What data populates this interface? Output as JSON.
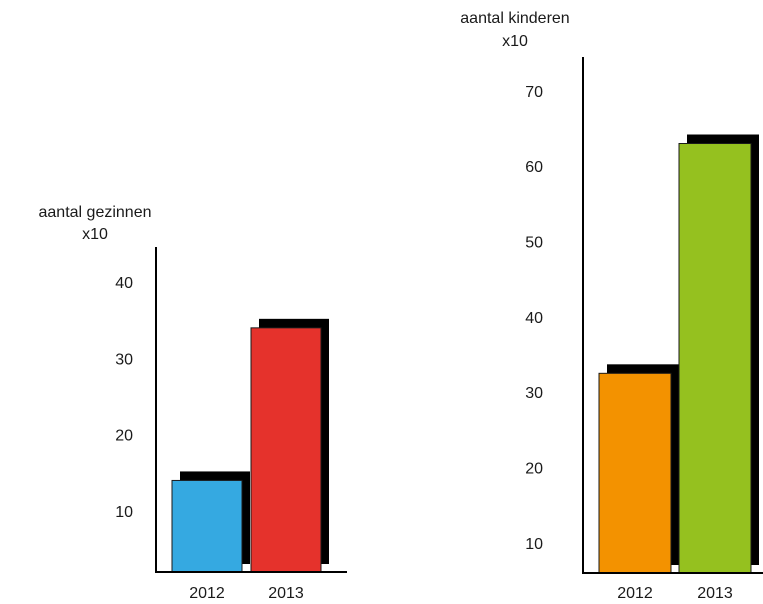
{
  "chart_data": [
    {
      "type": "bar",
      "title": "",
      "ylabel": "aantal gezinnen",
      "ylabel_unit": "x10",
      "categories": [
        "2012",
        "2013"
      ],
      "values": [
        14,
        34
      ],
      "yticks": [
        "10",
        "20",
        "30",
        "40"
      ],
      "ylim": [
        2,
        45
      ],
      "colors": [
        "#35a9e1",
        "#e5322c"
      ]
    },
    {
      "type": "bar",
      "title": "",
      "ylabel": "aantal kinderen",
      "ylabel_unit": "x10",
      "categories": [
        "2012",
        "2013"
      ],
      "values": [
        32.5,
        63
      ],
      "yticks": [
        "10",
        "20",
        "30",
        "40",
        "50",
        "60",
        "70"
      ],
      "ylim": [
        6,
        74
      ],
      "colors": [
        "#f39200",
        "#95c11f"
      ]
    }
  ]
}
